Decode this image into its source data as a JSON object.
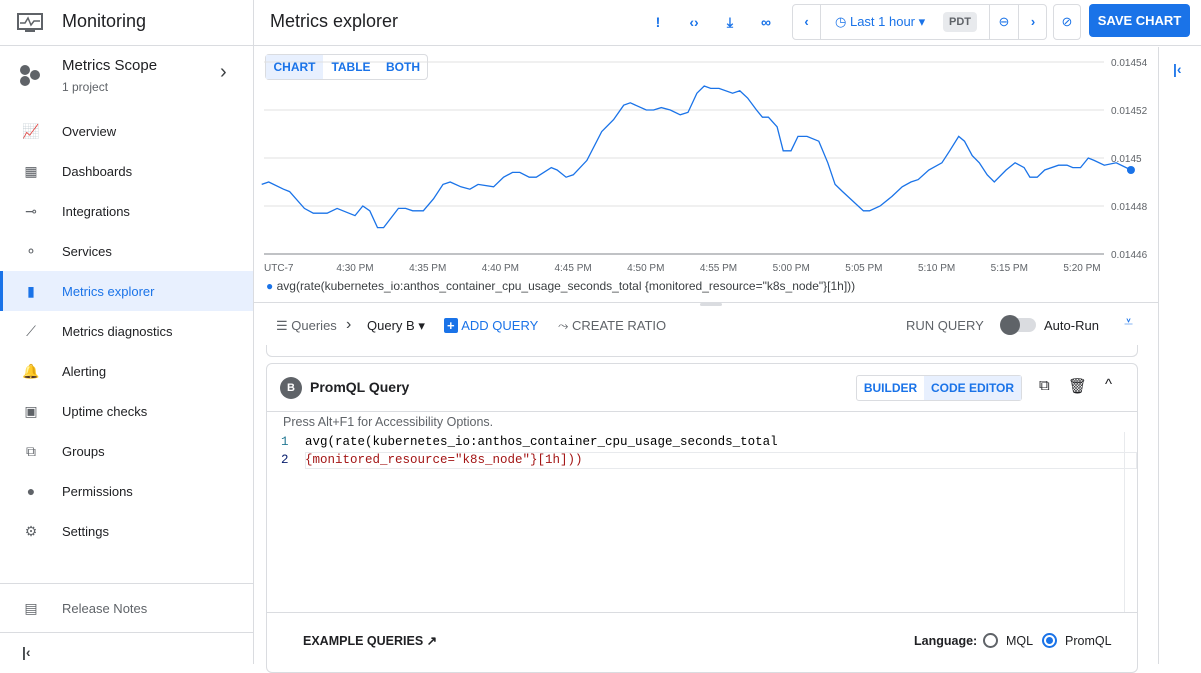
{
  "app": {
    "title": "Monitoring"
  },
  "scope": {
    "title": "Metrics Scope",
    "subtitle": "1 project"
  },
  "sidebar": {
    "items": [
      {
        "label": "Overview",
        "icon": "overview-icon"
      },
      {
        "label": "Dashboards",
        "icon": "dashboard-icon"
      },
      {
        "label": "Integrations",
        "icon": "integrations-icon"
      },
      {
        "label": "Services",
        "icon": "services-icon"
      },
      {
        "label": "Metrics explorer",
        "icon": "bar-chart-icon",
        "active": true
      },
      {
        "label": "Metrics diagnostics",
        "icon": "diagnostics-icon"
      },
      {
        "label": "Alerting",
        "icon": "bell-icon"
      },
      {
        "label": "Uptime checks",
        "icon": "monitor-icon"
      },
      {
        "label": "Groups",
        "icon": "groups-icon"
      },
      {
        "label": "Permissions",
        "icon": "person-icon"
      },
      {
        "label": "Settings",
        "icon": "gear-icon"
      }
    ],
    "release_notes": "Release Notes"
  },
  "header": {
    "title": "Metrics explorer",
    "time_range": "Last 1 hour",
    "timezone": "PDT",
    "save_label": "SAVE CHART"
  },
  "view_tabs": [
    "CHART",
    "TABLE",
    "BOTH"
  ],
  "query_bar": {
    "queries": "Queries",
    "current": "Query B",
    "add": "ADD QUERY",
    "ratio": "CREATE RATIO",
    "run": "RUN QUERY",
    "autorun": "Auto-Run"
  },
  "query_card": {
    "badge": "B",
    "title": "PromQL Query",
    "builder": "BUILDER",
    "code_editor": "CODE EDITOR",
    "hint": "Press Alt+F1 for Accessibility Options.",
    "lines": [
      "avg(rate(kubernetes_io:anthos_container_cpu_usage_seconds_total",
      "{monitored_resource=\"k8s_node\"}[1h]))"
    ]
  },
  "footer": {
    "examples": "EXAMPLE QUERIES",
    "language_label": "Language:",
    "options": [
      "MQL",
      "PromQL"
    ],
    "selected": "PromQL"
  },
  "colors": {
    "accent": "#1a73e8",
    "series": "#1a73e8"
  },
  "chart_data": {
    "type": "line",
    "timezone_label": "UTC-7",
    "x_ticks": [
      "4:30 PM",
      "4:35 PM",
      "4:40 PM",
      "4:45 PM",
      "4:50 PM",
      "4:55 PM",
      "5:00 PM",
      "5:05 PM",
      "5:10 PM",
      "5:15 PM",
      "5:20 PM"
    ],
    "y_ticks": [
      "0.01454",
      "0.01452",
      "0.0145",
      "0.01448",
      "0.01446"
    ],
    "ylim": [
      0.01446,
      0.01454
    ],
    "grid": true,
    "legend_position": "bottom",
    "series": [
      {
        "name": "avg(rate(kubernetes_io:anthos_container_cpu_usage_seconds_total {monitored_resource=\"k8s_node\"}[1h]))",
        "points": [
          [
            "16:23:35",
            0.014489
          ],
          [
            "16:24:04",
            0.01449
          ],
          [
            "16:25:05",
            0.014487
          ],
          [
            "16:25:30",
            0.014486
          ],
          [
            "16:26:31",
            0.014479
          ],
          [
            "16:27:08",
            0.014477
          ],
          [
            "16:28:05",
            0.014477
          ],
          [
            "16:28:46",
            0.014479
          ],
          [
            "16:29:35",
            0.014477
          ],
          [
            "16:30:00",
            0.014476
          ],
          [
            "16:30:32",
            0.01448
          ],
          [
            "16:31:01",
            0.014478
          ],
          [
            "16:31:33",
            0.014471
          ],
          [
            "16:31:58",
            0.014471
          ],
          [
            "16:32:59",
            0.014479
          ],
          [
            "16:33:29",
            0.014479
          ],
          [
            "16:33:58",
            0.014478
          ],
          [
            "16:34:42",
            0.014478
          ],
          [
            "16:35:24",
            0.014483
          ],
          [
            "16:36:03",
            0.014489
          ],
          [
            "16:36:33",
            0.01449
          ],
          [
            "16:37:17",
            0.014488
          ],
          [
            "16:37:54",
            0.014487
          ],
          [
            "16:38:28",
            0.014489
          ],
          [
            "16:39:32",
            0.014488
          ],
          [
            "16:40:13",
            0.014492
          ],
          [
            "16:40:50",
            0.014494
          ],
          [
            "16:41:20",
            0.014494
          ],
          [
            "16:41:59",
            0.014492
          ],
          [
            "16:42:28",
            0.014492
          ],
          [
            "16:43:30",
            0.014496
          ],
          [
            "16:43:54",
            0.014495
          ],
          [
            "16:44:31",
            0.014492
          ],
          [
            "16:45:01",
            0.014493
          ],
          [
            "16:45:57",
            0.014499
          ],
          [
            "16:46:58",
            0.014511
          ],
          [
            "16:47:47",
            0.014516
          ],
          [
            "16:48:29",
            0.014522
          ],
          [
            "16:48:56",
            0.014523
          ],
          [
            "16:50:02",
            0.01452
          ],
          [
            "16:50:32",
            0.01452
          ],
          [
            "16:51:04",
            0.014521
          ],
          [
            "16:51:41",
            0.01452
          ],
          [
            "16:52:22",
            0.014518
          ],
          [
            "16:52:54",
            0.014519
          ],
          [
            "16:53:31",
            0.014527
          ],
          [
            "16:54:01",
            0.01453
          ],
          [
            "16:54:28",
            0.014529
          ],
          [
            "16:55:02",
            0.014529
          ],
          [
            "16:55:58",
            0.014527
          ],
          [
            "16:56:28",
            0.014528
          ],
          [
            "16:57:00",
            0.014525
          ],
          [
            "16:57:37",
            0.01452
          ],
          [
            "16:58:01",
            0.014517
          ],
          [
            "16:58:26",
            0.014517
          ],
          [
            "16:59:02",
            0.014513
          ],
          [
            "16:59:27",
            0.014503
          ],
          [
            "16:59:59",
            0.014503
          ],
          [
            "17:00:28",
            0.014509
          ],
          [
            "17:01:05",
            0.014509
          ],
          [
            "17:01:54",
            0.014507
          ],
          [
            "17:02:31",
            0.014498
          ],
          [
            "17:03:01",
            0.014489
          ],
          [
            "17:03:32",
            0.014486
          ],
          [
            "17:04:58",
            0.014478
          ],
          [
            "17:05:23",
            0.014478
          ],
          [
            "17:06:07",
            0.01448
          ],
          [
            "17:06:56",
            0.014484
          ],
          [
            "17:07:38",
            0.014488
          ],
          [
            "17:08:14",
            0.01449
          ],
          [
            "17:08:44",
            0.014491
          ],
          [
            "17:09:28",
            0.014495
          ],
          [
            "17:10:22",
            0.014498
          ],
          [
            "17:10:54",
            0.014503
          ],
          [
            "17:11:31",
            0.014509
          ],
          [
            "17:11:55",
            0.014507
          ],
          [
            "17:12:27",
            0.014501
          ],
          [
            "17:12:56",
            0.014498
          ],
          [
            "17:13:29",
            0.014493
          ],
          [
            "17:13:58",
            0.01449
          ],
          [
            "17:14:47",
            0.014495
          ],
          [
            "17:15:24",
            0.014498
          ],
          [
            "17:16:01",
            0.014496
          ],
          [
            "17:16:25",
            0.014492
          ],
          [
            "17:16:55",
            0.014492
          ],
          [
            "17:17:26",
            0.014495
          ],
          [
            "17:18:23",
            0.014497
          ],
          [
            "17:18:58",
            0.014497
          ],
          [
            "17:19:22",
            0.014496
          ],
          [
            "17:19:54",
            0.014496
          ],
          [
            "17:20:26",
            0.0145
          ],
          [
            "17:20:50",
            0.014499
          ],
          [
            "17:21:32",
            0.014497
          ],
          [
            "17:22:21",
            0.014498
          ],
          [
            "17:23:22",
            0.014495
          ]
        ]
      }
    ]
  }
}
